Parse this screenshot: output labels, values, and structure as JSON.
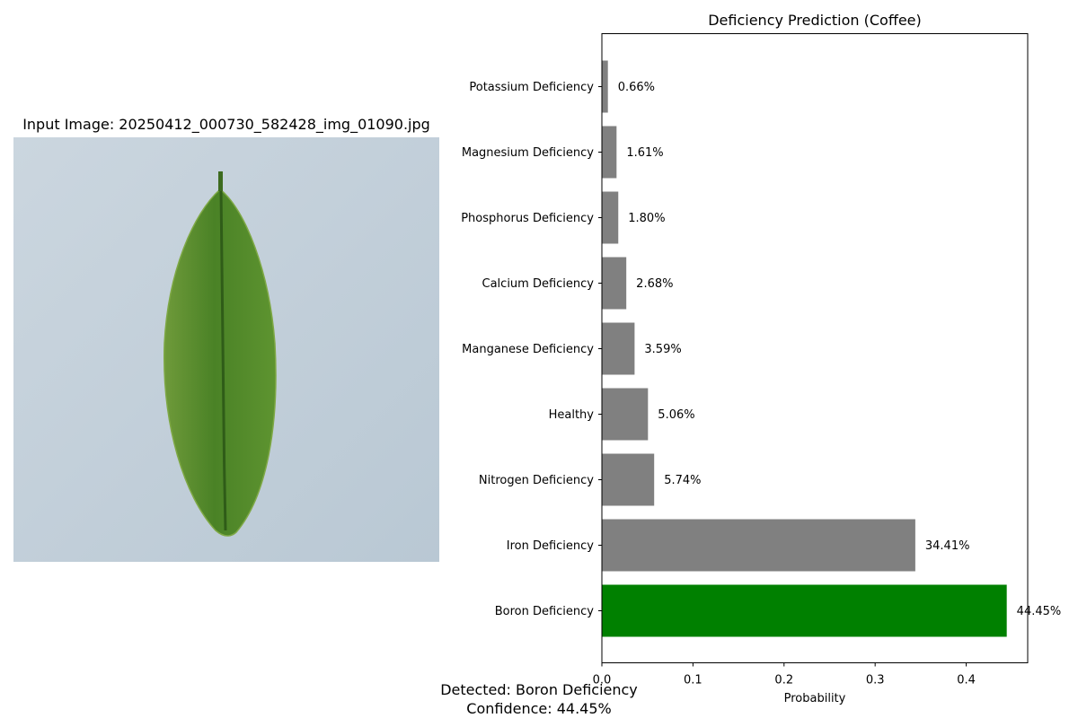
{
  "image_panel": {
    "title": "Input Image: 20250412_000730_582428_img_01090.jpg",
    "background_color": "#c6d2dc",
    "leaf_color": "#4a8226"
  },
  "summary": {
    "detected": "Detected: Boron Deficiency",
    "confidence": "Confidence: 44.45%"
  },
  "chart_data": {
    "type": "bar",
    "orientation": "horizontal",
    "title": "Deficiency Prediction (Coffee)",
    "xlabel": "Probability",
    "ylabel": "",
    "xlim": [
      0,
      0.4675
    ],
    "xticks": [
      0.0,
      0.1,
      0.2,
      0.3,
      0.4
    ],
    "xtick_labels": [
      "0.0",
      "0.1",
      "0.2",
      "0.3",
      "0.4"
    ],
    "grid": false,
    "categories": [
      "Boron Deficiency",
      "Iron Deficiency",
      "Nitrogen Deficiency",
      "Healthy",
      "Manganese Deficiency",
      "Calcium Deficiency",
      "Phosphorus Deficiency",
      "Magnesium Deficiency",
      "Potassium Deficiency"
    ],
    "values": [
      0.4445,
      0.3441,
      0.0574,
      0.0506,
      0.0359,
      0.0268,
      0.018,
      0.0161,
      0.0066
    ],
    "value_labels": [
      "44.45%",
      "34.41%",
      "5.74%",
      "5.06%",
      "3.59%",
      "2.68%",
      "1.80%",
      "1.61%",
      "0.66%"
    ],
    "highlight_index": 0,
    "highlight_color": "#008000",
    "bar_color": "#808080"
  }
}
